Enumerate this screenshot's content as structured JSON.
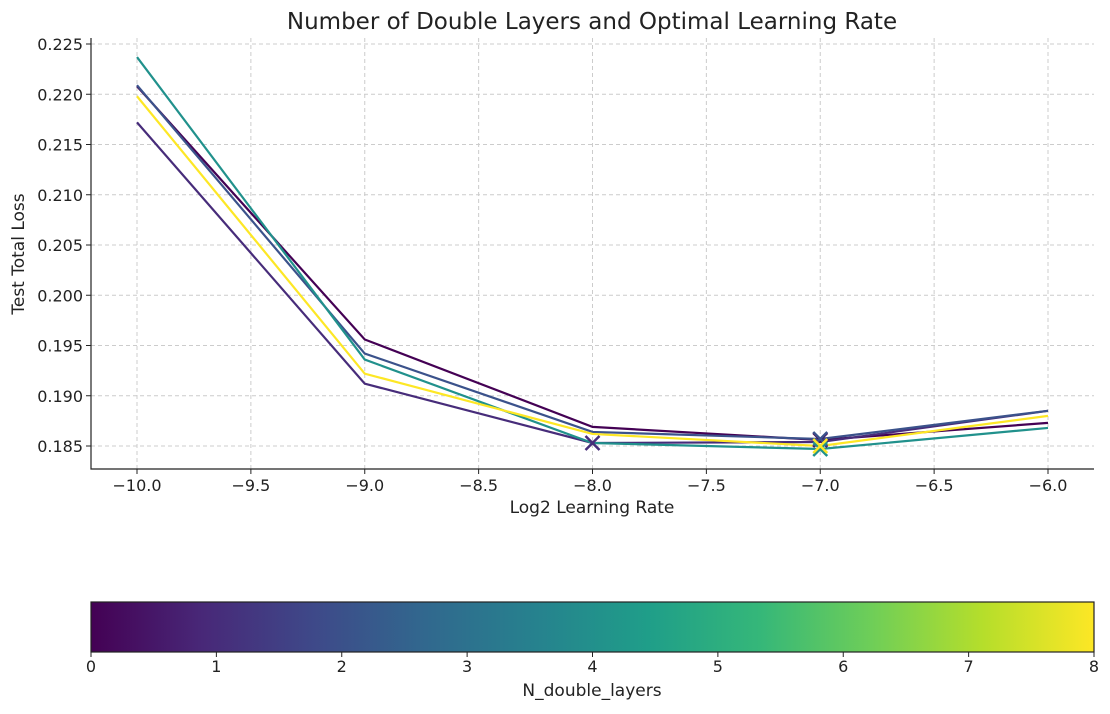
{
  "chart_data": {
    "type": "line",
    "title": "Number of Double Layers and Optimal Learning Rate",
    "xlabel": "Log2 Learning Rate",
    "ylabel": "Test Total Loss",
    "xlim": [
      -10.2,
      -5.8
    ],
    "ylim": [
      0.1827,
      0.2256
    ],
    "xticks": [
      -10.0,
      -9.5,
      -9.0,
      -8.5,
      -8.0,
      -7.5,
      -7.0,
      -6.5,
      -6.0
    ],
    "xtick_labels": [
      "−10.0",
      "−9.5",
      "−9.0",
      "−8.5",
      "−8.0",
      "−7.5",
      "−7.0",
      "−6.5",
      "−6.0"
    ],
    "yticks": [
      0.185,
      0.19,
      0.195,
      0.2,
      0.205,
      0.21,
      0.215,
      0.22,
      0.225
    ],
    "ytick_labels": [
      "0.185",
      "0.190",
      "0.195",
      "0.200",
      "0.205",
      "0.210",
      "0.215",
      "0.220",
      "0.225"
    ],
    "grid": true,
    "x": [
      -10,
      -9,
      -8,
      -7,
      -6
    ],
    "series": [
      {
        "n_double_layers": 0,
        "color": "#440154",
        "values": [
          0.2208,
          0.1956,
          0.1869,
          0.1856,
          0.1873
        ]
      },
      {
        "n_double_layers": 1,
        "color": "#472c7a",
        "values": [
          0.2172,
          0.1912,
          0.1853,
          0.1854,
          0.1885
        ]
      },
      {
        "n_double_layers": 2,
        "color": "#3b528b",
        "values": [
          0.2209,
          0.1942,
          0.1864,
          0.1857,
          0.1885
        ]
      },
      {
        "n_double_layers": 4,
        "color": "#21918c",
        "values": [
          0.2237,
          0.1936,
          0.1853,
          0.1847,
          0.1868
        ]
      },
      {
        "n_double_layers": 8,
        "color": "#fde725",
        "values": [
          0.2198,
          0.1922,
          0.1862,
          0.185,
          0.188
        ]
      }
    ],
    "markers": "x at minimum of each series",
    "colorbar": {
      "label": "N_double_layers",
      "range": [
        0,
        8
      ],
      "ticks": [
        "0",
        "1",
        "2",
        "3",
        "4",
        "5",
        "6",
        "7",
        "8"
      ],
      "colormap": "viridis",
      "stops": [
        "#440154",
        "#482878",
        "#3e4989",
        "#31688e",
        "#26828e",
        "#1f9e89",
        "#35b779",
        "#6ece58",
        "#b5de2b",
        "#fde725"
      ]
    }
  }
}
